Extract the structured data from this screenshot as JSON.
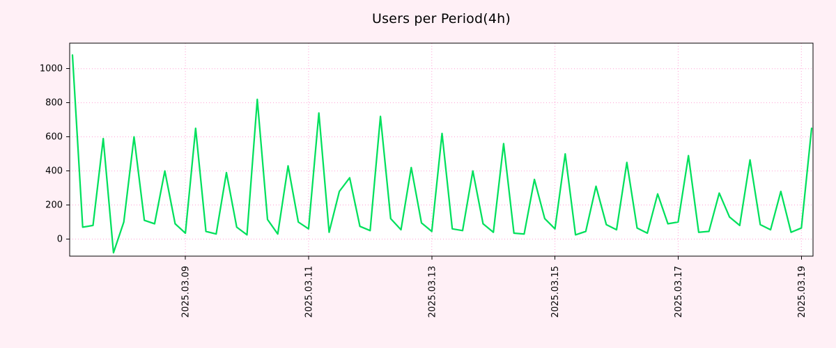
{
  "chart_data": {
    "type": "line",
    "title": "Users per Period(4h)",
    "x_axis": {
      "tick_labels": [
        "2025.03.09",
        "2025.03.11",
        "2025.03.13",
        "2025.03.15",
        "2025.03.17",
        "2025.03.19"
      ],
      "tick_indices": [
        11,
        23,
        35,
        47,
        59,
        71
      ]
    },
    "y_axis": {
      "ticks": [
        0,
        200,
        400,
        600,
        800,
        1000
      ]
    },
    "ylim": [
      -100,
      1150
    ],
    "grid": true,
    "legend": "none",
    "interval_label": "4h",
    "values": [
      1080,
      70,
      80,
      590,
      -80,
      100,
      600,
      110,
      90,
      400,
      90,
      35,
      650,
      45,
      30,
      390,
      70,
      25,
      820,
      115,
      30,
      430,
      100,
      60,
      740,
      40,
      280,
      360,
      75,
      50,
      720,
      120,
      55,
      420,
      95,
      45,
      620,
      60,
      50,
      400,
      90,
      40,
      560,
      35,
      30,
      350,
      120,
      60,
      500,
      25,
      45,
      310,
      85,
      55,
      450,
      65,
      35,
      265,
      90,
      100,
      490,
      40,
      45,
      270,
      130,
      80,
      465,
      85,
      55,
      280,
      40,
      65,
      650
    ]
  },
  "style": {
    "background": "#fff0f6",
    "plot_background": "#ffffff",
    "grid_color": "#ff9ed2",
    "line_color": "#00e05c",
    "axis_color": "#000000",
    "text_color": "#000000"
  }
}
